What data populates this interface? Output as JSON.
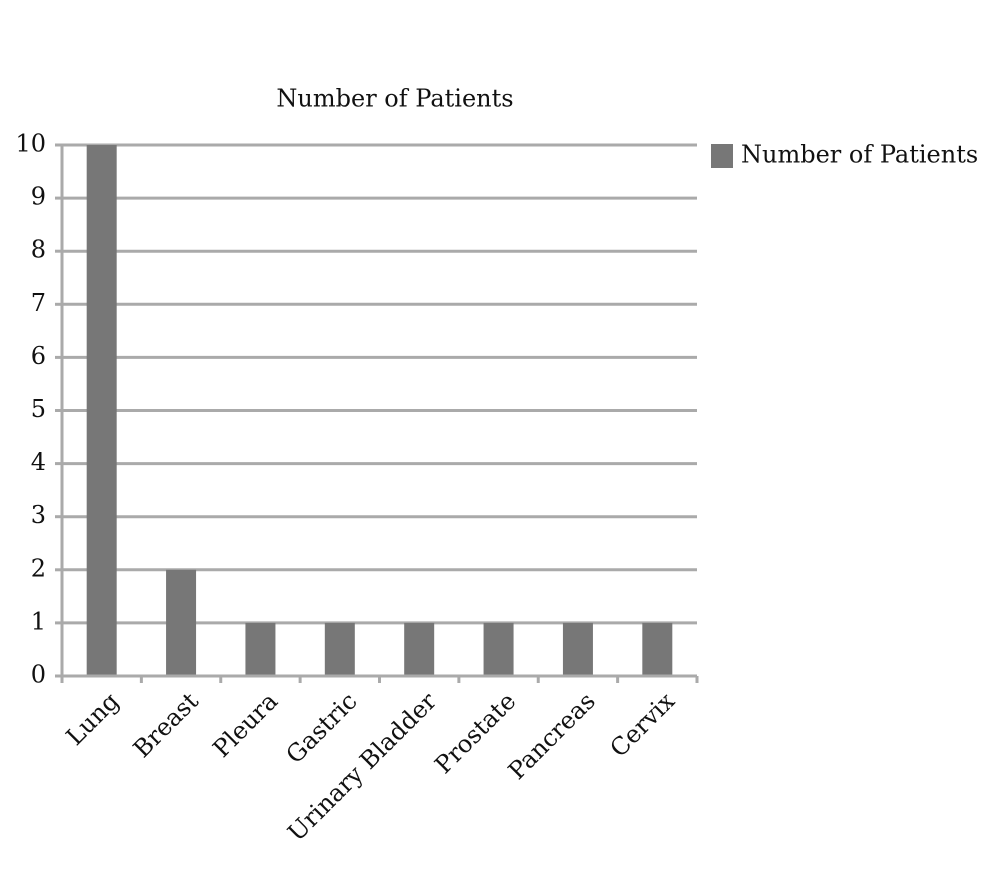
{
  "chart_data": {
    "type": "bar",
    "title": "Number of Patients",
    "categories": [
      "Lung",
      "Breast",
      "Pleura",
      "Gastric",
      "Urinary Bladder",
      "Prostate",
      "Pancreas",
      "Cervix"
    ],
    "series": [
      {
        "name": "Number of Patients",
        "color": "#777777",
        "values": [
          10,
          2,
          1,
          1,
          1,
          1,
          1,
          1
        ]
      }
    ],
    "ylim": [
      0,
      10
    ],
    "yticks": [
      0,
      1,
      2,
      3,
      4,
      5,
      6,
      7,
      8,
      9,
      10
    ],
    "grid": true,
    "legend": "right"
  }
}
